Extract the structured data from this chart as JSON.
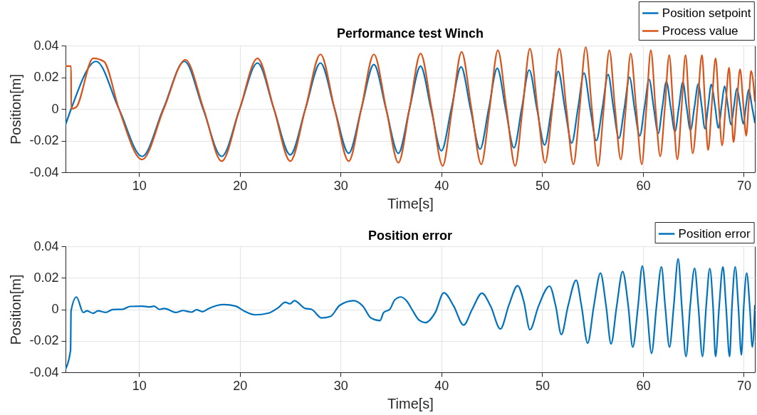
{
  "chart_data": [
    {
      "type": "line",
      "title": "Performance test Winch",
      "xlabel": "Time[s]",
      "ylabel": "Position[m]",
      "xlim": [
        2.7,
        71.1
      ],
      "xticks": [
        10,
        20,
        30,
        40,
        50,
        60,
        70
      ],
      "ylim": [
        -0.04,
        0.04
      ],
      "yticks": [
        -0.04,
        -0.02,
        0,
        0.02,
        0.04
      ],
      "grid": true,
      "legend": "top right",
      "series": [
        {
          "name": "Position setpoint",
          "color": "#0072bd",
          "x": [
            2.7,
            3.26,
            5.74,
            8.0,
            10.3,
            12.4,
            14.5,
            16.35,
            18.2,
            19.98,
            21.75,
            23.38,
            25.0,
            26.5,
            28.0,
            29.4,
            30.8,
            32.05,
            33.3,
            34.5,
            35.73,
            36.83,
            37.93,
            38.97,
            40.0,
            40.98,
            41.95,
            42.89,
            43.83,
            44.69,
            45.54,
            46.37,
            47.2,
            47.96,
            48.71,
            49.48,
            50.24,
            50.92,
            51.59,
            52.26,
            52.93,
            53.54,
            54.15,
            54.76,
            55.37,
            55.96,
            56.54,
            57.08,
            57.61,
            58.14,
            58.66,
            59.17,
            59.68,
            60.15,
            60.61,
            61.06,
            61.51,
            61.92,
            62.32,
            62.75,
            63.17,
            63.56,
            63.95,
            64.33,
            64.71,
            65.1,
            65.49,
            65.82,
            66.15,
            66.47,
            66.78,
            67.14,
            67.49,
            67.8,
            68.1,
            68.42,
            68.73,
            69.03,
            69.32,
            69.64,
            69.95,
            70.22,
            70.49,
            70.8,
            71.1
          ],
          "values": [
            -0.01,
            0,
            0.03,
            0,
            -0.03,
            0,
            0.03,
            0,
            -0.03,
            0,
            0.029,
            0,
            -0.029,
            0,
            0.029,
            0,
            -0.028,
            0,
            0.028,
            0,
            -0.028,
            0,
            0.027,
            0,
            -0.0265,
            0,
            0.0266,
            0,
            -0.0254,
            0,
            0.0257,
            0,
            -0.0246,
            0,
            0.0246,
            0,
            -0.0228,
            0,
            0.0238,
            0,
            -0.0215,
            0,
            0.0226,
            0,
            -0.02,
            0,
            0.0217,
            0,
            -0.0185,
            0,
            0.02,
            0,
            -0.017,
            0.001,
            0.0186,
            0.001,
            -0.0154,
            0.001,
            0.0173,
            0.001,
            -0.0143,
            0.001,
            0.0168,
            0.001,
            -0.0135,
            0.001,
            0.0158,
            0.002,
            -0.0125,
            0.002,
            0.0155,
            0.002,
            -0.012,
            0.002,
            0.0143,
            0.002,
            -0.01,
            0.002,
            0.013,
            0.002,
            -0.0095,
            0.002,
            0.0123,
            0.002,
            -0.0085
          ]
        },
        {
          "name": "Process value",
          "color": "#d95319",
          "x": [
            2.7,
            3.25,
            3.27,
            3.74,
            5.45,
            6.5,
            8.0,
            10.3,
            12.45,
            14.6,
            16.4,
            18.2,
            19.98,
            21.75,
            23.38,
            25.0,
            26.5,
            28.0,
            29.4,
            30.8,
            32.05,
            33.3,
            34.52,
            35.73,
            36.83,
            37.93,
            39.03,
            40.12,
            41.06,
            42.0,
            42.98,
            43.95,
            44.78,
            45.6,
            46.46,
            47.32,
            48.05,
            48.78,
            49.54,
            50.29,
            51.0,
            51.7,
            52.4,
            53.1,
            53.71,
            54.32,
            54.93,
            55.54,
            56.1,
            56.66,
            57.23,
            57.8,
            58.29,
            58.78,
            59.33,
            59.88,
            60.33,
            60.78,
            61.25,
            61.71,
            62.16,
            62.6,
            63.0,
            63.41,
            63.82,
            64.22,
            64.58,
            64.93,
            65.39,
            65.85,
            66.15,
            66.46,
            66.83,
            67.2,
            67.53,
            67.85,
            68.2,
            68.54,
            68.76,
            68.98,
            69.3,
            69.63,
            69.94,
            70.24,
            70.49,
            70.73,
            71.1
          ],
          "values": [
            0.027,
            0.027,
            0,
            0.001,
            0.032,
            0.03,
            0,
            -0.032,
            0,
            0.031,
            0,
            -0.033,
            0,
            0.032,
            0,
            -0.033,
            0,
            0.0345,
            0,
            -0.033,
            0,
            0.0345,
            0,
            -0.034,
            0,
            0.035,
            0,
            -0.036,
            0,
            0.036,
            0,
            -0.035,
            0,
            0.037,
            0,
            -0.036,
            0,
            0.038,
            0,
            -0.034,
            0,
            0.038,
            0,
            -0.035,
            0,
            0.039,
            0,
            -0.036,
            0,
            0.037,
            0,
            -0.032,
            0,
            0.035,
            0,
            -0.035,
            0,
            0.037,
            0,
            -0.03,
            0,
            0.034,
            0,
            -0.032,
            0,
            0.034,
            0,
            -0.028,
            0,
            0.034,
            0.004,
            -0.026,
            0.003,
            0.032,
            0.002,
            -0.023,
            0.002,
            0.026,
            0.002,
            -0.021,
            0.002,
            0.025,
            0.004,
            -0.017,
            0.004,
            0.024,
            0.005
          ]
        }
      ]
    },
    {
      "type": "line",
      "title": "Position error",
      "xlabel": "Time[s]",
      "ylabel": "Position[m]",
      "xlim": [
        2.7,
        71.1
      ],
      "xticks": [
        10,
        20,
        30,
        40,
        50,
        60,
        70
      ],
      "ylim": [
        -0.04,
        0.04
      ],
      "yticks": [
        -0.04,
        -0.02,
        0,
        0.02,
        0.04
      ],
      "grid": true,
      "legend": "top right",
      "series": [
        {
          "name": "Position error",
          "color": "#0072bd",
          "x": [
            2.7,
            3.2,
            3.25,
            3.79,
            4.46,
            4.83,
            5.44,
            5.93,
            6.66,
            7.39,
            8.37,
            9.1,
            10.3,
            11.05,
            11.5,
            12.0,
            12.5,
            13.7,
            14.33,
            15.2,
            15.7,
            16.3,
            16.9,
            18.4,
            19.6,
            20.4,
            21.5,
            22.8,
            23.8,
            24.5,
            25.0,
            25.4,
            26.5,
            27.1,
            28.1,
            29.0,
            29.9,
            31.3,
            32.2,
            33.0,
            33.9,
            34.27,
            34.88,
            35.37,
            35.98,
            36.59,
            37.07,
            37.8,
            38.41,
            39.39,
            40.24,
            41.22,
            42.2,
            43.05,
            44.02,
            44.88,
            45.85,
            46.71,
            47.56,
            48.17,
            48.78,
            49.63,
            50.73,
            51.34,
            51.9,
            52.56,
            53.37,
            53.9,
            54.51,
            55.12,
            55.78,
            56.34,
            56.83,
            57.39,
            57.98,
            58.54,
            58.98,
            59.51,
            59.93,
            60.37,
            60.85,
            61.34,
            61.83,
            62.2,
            62.63,
            63.05,
            63.49,
            63.85,
            64.27,
            64.68,
            65.12,
            65.49,
            65.9,
            66.27,
            66.63,
            66.95,
            67.2,
            67.56,
            67.93,
            68.24,
            68.59,
            68.83,
            69.15,
            69.46,
            69.76,
            70.0,
            70.29,
            70.61,
            70.85,
            71.1
          ],
          "values": [
            -0.038,
            -0.026,
            -0.001,
            0.0078,
            -0.002,
            -0.001,
            -0.0025,
            -0.001,
            -0.002,
            -0.0002,
            0,
            0.0018,
            0.002,
            0.0015,
            0.002,
            0,
            0.0005,
            -0.002,
            -0.0008,
            -0.0018,
            -0.0003,
            -0.0015,
            0.0005,
            0.003,
            0.002,
            -0.001,
            -0.0035,
            -0.0025,
            0.001,
            0.0045,
            0.0035,
            0.0055,
            0.0005,
            0,
            -0.0055,
            -0.0045,
            0.0025,
            0.0055,
            0.002,
            -0.0055,
            -0.0072,
            -0.002,
            0,
            0.006,
            0.0078,
            0.005,
            0,
            -0.007,
            -0.0085,
            -0.002,
            0.0105,
            0.002,
            -0.01,
            0,
            0.0102,
            0.002,
            -0.0125,
            0.003,
            0.015,
            0.005,
            -0.013,
            0.002,
            0.0147,
            0.002,
            -0.016,
            0.002,
            0.0185,
            0.002,
            -0.0215,
            0.002,
            0.023,
            0.002,
            -0.022,
            0.002,
            0.024,
            0.002,
            -0.024,
            0.002,
            0.0275,
            0.002,
            -0.028,
            0.002,
            0.027,
            0.002,
            -0.024,
            0.002,
            0.032,
            0.002,
            -0.03,
            0.002,
            0.026,
            0.002,
            -0.03,
            0.002,
            0.026,
            0.002,
            -0.03,
            0.002,
            0.027,
            0.002,
            -0.03,
            0.002,
            0.027,
            0.002,
            -0.029,
            0.002,
            0.023,
            0,
            -0.024,
            0.0023
          ]
        }
      ]
    }
  ]
}
